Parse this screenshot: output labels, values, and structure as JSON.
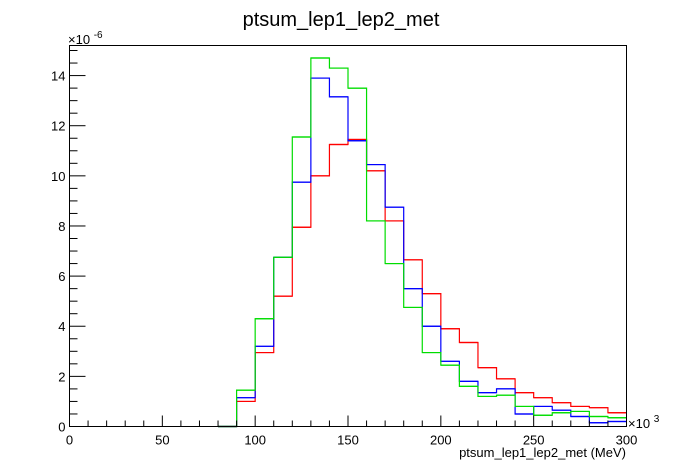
{
  "chart_data": {
    "type": "step-histogram",
    "title": "ptsum_lep1_lep2_met",
    "xlabel": "ptsum_lep1_lep2_met (MeV)",
    "ylabel": "",
    "x_multiplier_label": "×10",
    "x_multiplier_exp": "3",
    "y_multiplier_label": "×10",
    "y_multiplier_exp": "-6",
    "xlim": [
      0,
      300
    ],
    "ylim": [
      0,
      15.2
    ],
    "x_ticks": [
      0,
      50,
      100,
      150,
      200,
      250,
      300
    ],
    "x_tick_labels": [
      "0",
      "50",
      "100",
      "150",
      "200",
      "250",
      "300"
    ],
    "y_ticks": [
      0,
      2,
      4,
      6,
      8,
      10,
      12,
      14
    ],
    "y_tick_labels": [
      "0",
      "2",
      "4",
      "6",
      "8",
      "10",
      "12",
      "14"
    ],
    "grid": false,
    "legend": "none",
    "bin_edges": [
      80,
      90,
      100,
      110,
      120,
      130,
      140,
      150,
      160,
      170,
      180,
      190,
      200,
      210,
      220,
      230,
      240,
      250,
      260,
      270,
      280,
      290,
      300
    ],
    "series": [
      {
        "color": "#ff0000",
        "values": [
          0,
          1.0,
          2.95,
          5.2,
          7.95,
          10.0,
          11.25,
          11.45,
          10.2,
          8.2,
          6.65,
          5.3,
          3.9,
          3.35,
          2.35,
          1.9,
          1.35,
          1.15,
          0.95,
          0.8,
          0.75,
          0.55
        ]
      },
      {
        "color": "#0000ff",
        "values": [
          0,
          1.15,
          3.2,
          6.75,
          9.75,
          13.9,
          13.15,
          11.4,
          10.45,
          8.75,
          5.5,
          4.0,
          2.6,
          1.8,
          1.35,
          1.5,
          0.5,
          0.8,
          0.65,
          0.4,
          0.15,
          0.2
        ]
      },
      {
        "color": "#00dd00",
        "values": [
          0,
          1.45,
          4.3,
          6.75,
          11.55,
          14.7,
          14.3,
          13.5,
          8.2,
          6.5,
          4.75,
          2.95,
          2.45,
          1.6,
          1.2,
          1.25,
          0.8,
          0.45,
          0.55,
          0.6,
          0.4,
          0.35
        ]
      }
    ]
  }
}
